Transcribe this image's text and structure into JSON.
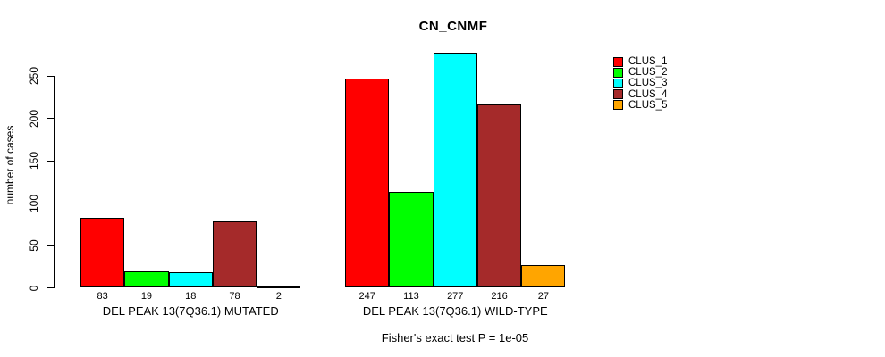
{
  "title": "CN_CNMF",
  "chart_data": {
    "type": "bar",
    "title": "CN_CNMF",
    "ylabel": "number of cases",
    "xlabel": "",
    "ylim": [
      0,
      280
    ],
    "yticks": [
      0,
      50,
      100,
      150,
      200,
      250
    ],
    "grid": false,
    "legend_position": "top-right",
    "series": [
      {
        "name": "CLUS_1",
        "color": "#FF0000"
      },
      {
        "name": "CLUS_2",
        "color": "#00FF00"
      },
      {
        "name": "CLUS_3",
        "color": "#00FFFF"
      },
      {
        "name": "CLUS_4",
        "color": "#A52A2A"
      },
      {
        "name": "CLUS_5",
        "color": "#FFA500"
      }
    ],
    "groups": [
      {
        "label": "DEL PEAK 13(7Q36.1) MUTATED",
        "values": [
          83,
          19,
          18,
          78,
          2
        ]
      },
      {
        "label": "DEL PEAK 13(7Q36.1) WILD-TYPE",
        "values": [
          247,
          113,
          277,
          216,
          27
        ]
      }
    ],
    "annotation": "Fisher's exact test P = 1e-05"
  }
}
